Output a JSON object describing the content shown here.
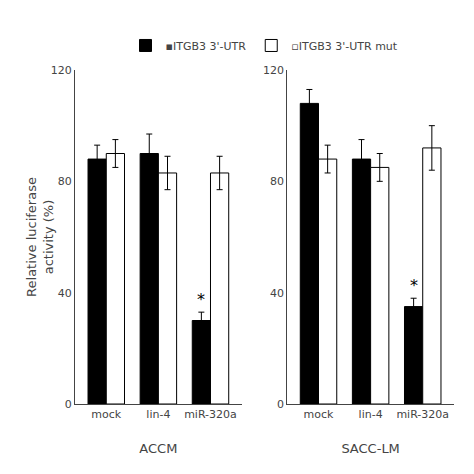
{
  "chart_data": [
    {
      "type": "bar",
      "xlabel": "ACCM",
      "ylabel": "Relative luciferase\nactivity (%)",
      "categories": [
        "mock",
        "lin-4",
        "miR-320a"
      ],
      "series": [
        {
          "name": "▪ITGB3 3'-UTR",
          "color": "#000000",
          "values": [
            88,
            90,
            30
          ],
          "errors": [
            5,
            7,
            3
          ]
        },
        {
          "name": "▫ITGB3 3'-UTR mut",
          "color": "#ffffff",
          "values": [
            90,
            83,
            83
          ],
          "errors": [
            5,
            6,
            6
          ]
        }
      ],
      "ylim": [
        0,
        120
      ],
      "yticks": [
        0,
        40,
        80,
        120
      ],
      "grid": false,
      "annotations": [
        {
          "text": "*",
          "x": "miR-320a",
          "series": "▪ITGB3 3'-UTR"
        }
      ]
    },
    {
      "type": "bar",
      "xlabel": "SACC-LM",
      "categories": [
        "mock",
        "lin-4",
        "miR-320a"
      ],
      "series": [
        {
          "name": "▪ITGB3 3'-UTR",
          "color": "#000000",
          "values": [
            108,
            88,
            35
          ],
          "errors": [
            5,
            7,
            3
          ]
        },
        {
          "name": "▫ITGB3 3'-UTR mut",
          "color": "#ffffff",
          "values": [
            88,
            85,
            92
          ],
          "errors": [
            5,
            5,
            8
          ]
        }
      ],
      "ylim": [
        0,
        120
      ],
      "yticks": [
        0,
        40,
        80,
        120
      ],
      "grid": false,
      "legend": "top",
      "annotations": [
        {
          "text": "*",
          "x": "miR-320a",
          "series": "▪ITGB3 3'-UTR"
        }
      ]
    }
  ]
}
